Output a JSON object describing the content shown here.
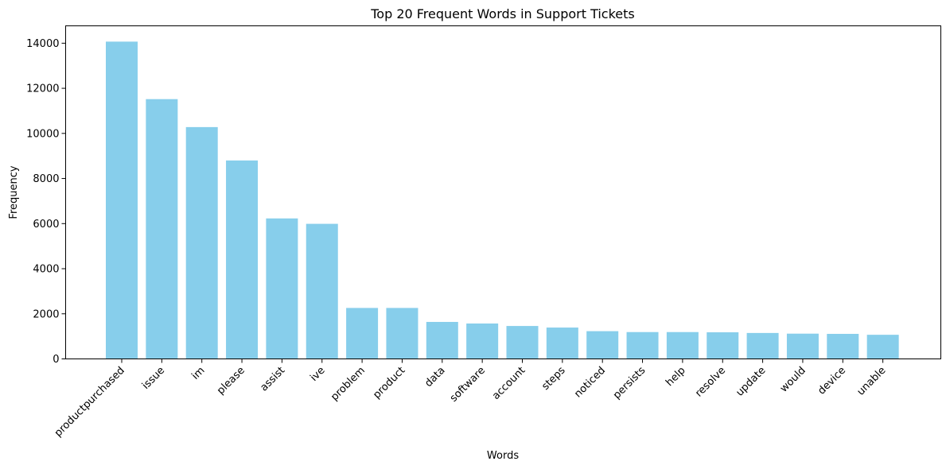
{
  "chart_data": {
    "type": "bar",
    "title": "Top 20 Frequent Words in Support Tickets",
    "xlabel": "Words",
    "ylabel": "Frequency",
    "categories": [
      "productpurchased",
      "issue",
      "im",
      "please",
      "assist",
      "ive",
      "problem",
      "product",
      "data",
      "software",
      "account",
      "steps",
      "noticed",
      "persists",
      "help",
      "resolve",
      "update",
      "would",
      "device",
      "unable"
    ],
    "values": [
      14070,
      11520,
      10280,
      8800,
      6230,
      5990,
      2260,
      2260,
      1640,
      1570,
      1460,
      1390,
      1230,
      1190,
      1190,
      1180,
      1150,
      1120,
      1110,
      1070
    ],
    "yticks": [
      0,
      2000,
      4000,
      6000,
      8000,
      10000,
      12000,
      14000
    ],
    "ylim": [
      0,
      14770
    ],
    "bar_color": "#87ceeb",
    "grid": false
  }
}
